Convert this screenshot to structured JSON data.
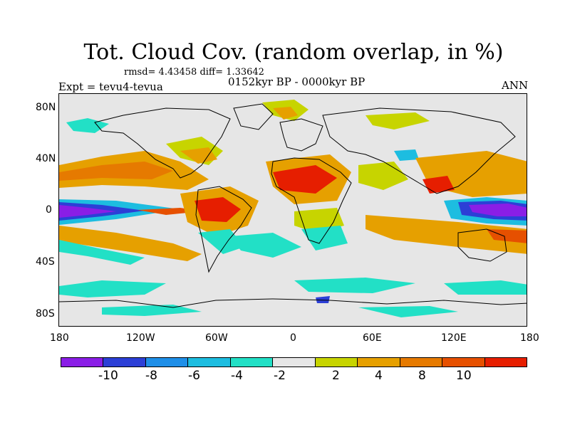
{
  "title": "Tot. Cloud Cov. (random overlap, in %)",
  "stats": "rmsd= 4.43458 diff= 1.33642",
  "expt": "Expt = tevu4-tevua",
  "period": "0152kyr BP - 0000kyr BP",
  "season": "ANN",
  "lat_labels": [
    "80N",
    "40N",
    "0",
    "40S",
    "80S"
  ],
  "lon_labels": [
    "180",
    "120W",
    "60W",
    "0",
    "60E",
    "120E",
    "180"
  ],
  "colorbar": {
    "colors": [
      "#8a1ee6",
      "#2c3fd6",
      "#1f8fe8",
      "#1dbde0",
      "#22e0c6",
      "#e6e6e6",
      "#c7d400",
      "#e6a000",
      "#e67a00",
      "#e65000",
      "#e61e00"
    ],
    "labels": [
      "-10",
      "-8",
      "-6",
      "-4",
      "-2",
      "2",
      "4",
      "8",
      "10"
    ]
  },
  "map": {
    "background": "#e6e6e6",
    "coastline_color": "#000000"
  }
}
